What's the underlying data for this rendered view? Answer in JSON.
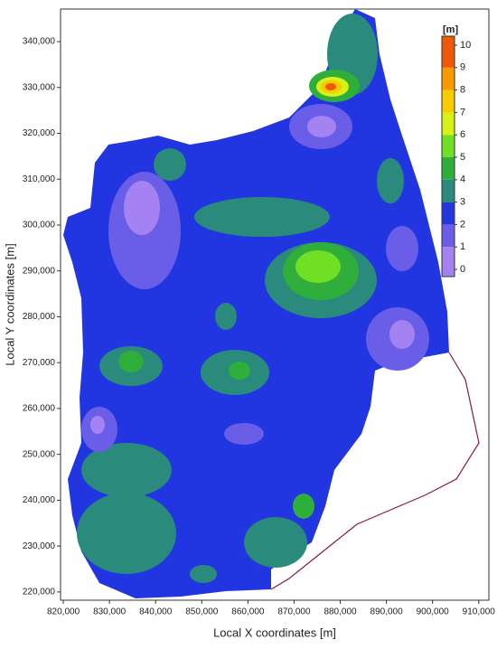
{
  "chart_data": {
    "type": "contour",
    "xlabel": "Local X coordinates [m]",
    "ylabel": "Local Y coordinates [m]",
    "xlim": [
      819400,
      912200
    ],
    "ylim": [
      218200,
      347100
    ],
    "xticks": [
      {
        "value": 820000,
        "label": "820,000"
      },
      {
        "value": 830000,
        "label": "830,000"
      },
      {
        "value": 840000,
        "label": "840,000"
      },
      {
        "value": 850000,
        "label": "850,000"
      },
      {
        "value": 860000,
        "label": "860,000"
      },
      {
        "value": 870000,
        "label": "870,000"
      },
      {
        "value": 880000,
        "label": "880,000"
      },
      {
        "value": 890000,
        "label": "890,000"
      },
      {
        "value": 900000,
        "label": "900,000"
      },
      {
        "value": 910000,
        "label": "910,000"
      }
    ],
    "yticks": [
      {
        "value": 220000,
        "label": "220,000"
      },
      {
        "value": 230000,
        "label": "230,000"
      },
      {
        "value": 240000,
        "label": "240,000"
      },
      {
        "value": 250000,
        "label": "250,000"
      },
      {
        "value": 260000,
        "label": "260,000"
      },
      {
        "value": 270000,
        "label": "270,000"
      },
      {
        "value": 280000,
        "label": "280,000"
      },
      {
        "value": 290000,
        "label": "290,000"
      },
      {
        "value": 300000,
        "label": "300,000"
      },
      {
        "value": 310000,
        "label": "310,000"
      },
      {
        "value": 320000,
        "label": "320,000"
      },
      {
        "value": 330000,
        "label": "330,000"
      },
      {
        "value": 340000,
        "label": "340,000"
      }
    ],
    "colorbar": {
      "label": "[m]",
      "range": [
        0,
        10
      ],
      "ticks": [
        0,
        1,
        2,
        3,
        4,
        5,
        6,
        7,
        8,
        9,
        10
      ],
      "colors": [
        "#a582f2",
        "#6a5ee8",
        "#2438dc",
        "#2a8a7c",
        "#2fae3c",
        "#6fe024",
        "#d8f016",
        "#f8cc00",
        "#f89a00",
        "#ee5a08"
      ]
    }
  }
}
